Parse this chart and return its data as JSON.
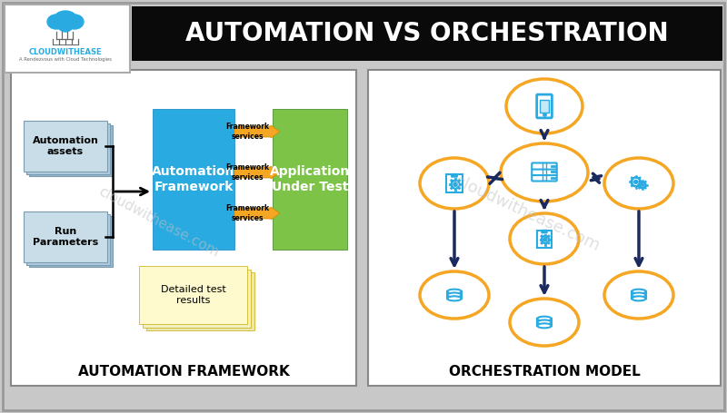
{
  "title": "AUTOMATION VS ORCHESTRATION",
  "title_color": "#FFFFFF",
  "title_bg": "#0a0a0a",
  "outer_bg": "#c8c8c8",
  "panel_bg": "#FFFFFF",
  "left_panel_title": "AUTOMATION FRAMEWORK",
  "right_panel_title": "ORCHESTRATION MODEL",
  "automation_box_color": "#29ABE2",
  "automation_box_text": "Automation\nFramework",
  "app_box_color": "#7DC348",
  "app_box_text": "Application\nUnder Test",
  "assets_text": "Automation\nassets",
  "run_params_text": "Run\nParameters",
  "detailed_test_text": "Detailed test\nresults",
  "framework_services": [
    "Framework\nservices",
    "Framework\nservices",
    "Framework\nservices"
  ],
  "framework_arrow_color": "#F5A623",
  "node_outline_color": "#F5A623",
  "node_icon_color": "#29ABE2",
  "arrow_color": "#1a2a5e",
  "watermark": "cloudwithease.com",
  "watermark_color": "#c0c0c0",
  "logo_text": "CLOUDWITHEASE",
  "logo_subtext": "A Rendezvous with Cloud Technologies"
}
